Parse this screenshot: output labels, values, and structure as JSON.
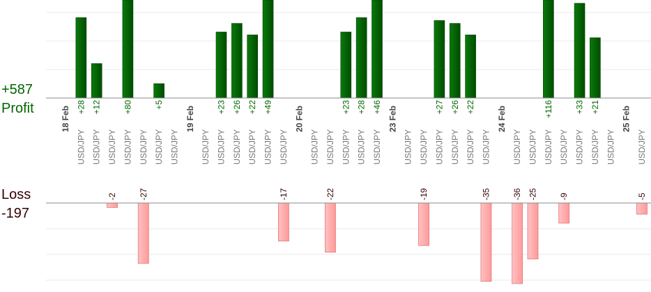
{
  "summary": {
    "profit_total": "+587",
    "profit_label": "Profit",
    "loss_label": "Loss",
    "loss_total": "-197"
  },
  "colors": {
    "profit_bar": "#006400",
    "loss_bar": "#ffaaaa",
    "profit_text": "#006600",
    "loss_text": "#330000",
    "axis": "#888888",
    "grid": "#e8e8e8",
    "label": "#777777"
  },
  "chart_data": {
    "type": "bar",
    "grid": true,
    "date_labels": [
      {
        "text": "18 Feb",
        "slot": 0
      },
      {
        "text": "19 Feb",
        "slot": 8
      },
      {
        "text": "20 Feb",
        "slot": 15
      },
      {
        "text": "23 Feb",
        "slot": 21
      },
      {
        "text": "24 Feb",
        "slot": 28
      },
      {
        "text": "25 Feb",
        "slot": 36
      }
    ],
    "slots": [
      {
        "pair": "",
        "profit": null,
        "loss": null
      },
      {
        "pair": "USD/JPY",
        "profit": 28,
        "loss": null
      },
      {
        "pair": "USD/JPY",
        "profit": 12,
        "loss": null
      },
      {
        "pair": "USD/JPY",
        "profit": null,
        "loss": -2
      },
      {
        "pair": "USD/JPY",
        "profit": 80,
        "loss": null
      },
      {
        "pair": "USD/JPY",
        "profit": null,
        "loss": -27
      },
      {
        "pair": "USD/JPY",
        "profit": 5,
        "loss": null
      },
      {
        "pair": "USD/JPY",
        "profit": null,
        "loss": null
      },
      {
        "pair": "",
        "profit": null,
        "loss": null
      },
      {
        "pair": "USD/JPY",
        "profit": null,
        "loss": null
      },
      {
        "pair": "USD/JPY",
        "profit": 23,
        "loss": null
      },
      {
        "pair": "USD/JPY",
        "profit": 26,
        "loss": null
      },
      {
        "pair": "USD/JPY",
        "profit": 22,
        "loss": null
      },
      {
        "pair": "USD/JPY",
        "profit": 49,
        "loss": null
      },
      {
        "pair": "USD/JPY",
        "profit": null,
        "loss": -17
      },
      {
        "pair": "",
        "profit": null,
        "loss": null
      },
      {
        "pair": "USD/JPY",
        "profit": null,
        "loss": null
      },
      {
        "pair": "USD/JPY",
        "profit": null,
        "loss": -22
      },
      {
        "pair": "USD/JPY",
        "profit": 23,
        "loss": null
      },
      {
        "pair": "USD/JPY",
        "profit": 28,
        "loss": null
      },
      {
        "pair": "USD/JPY",
        "profit": 46,
        "loss": null
      },
      {
        "pair": "",
        "profit": null,
        "loss": null
      },
      {
        "pair": "USD/JPY",
        "profit": null,
        "loss": null
      },
      {
        "pair": "USD/JPY",
        "profit": null,
        "loss": -19
      },
      {
        "pair": "USD/JPY",
        "profit": 27,
        "loss": null
      },
      {
        "pair": "USD/JPY",
        "profit": 26,
        "loss": null
      },
      {
        "pair": "USD/JPY",
        "profit": 22,
        "loss": null
      },
      {
        "pair": "USD/JPY",
        "profit": null,
        "loss": -35
      },
      {
        "pair": "",
        "profit": null,
        "loss": null
      },
      {
        "pair": "USD/JPY",
        "profit": null,
        "loss": -36
      },
      {
        "pair": "USD/JPY",
        "profit": null,
        "loss": -25
      },
      {
        "pair": "USD/JPY",
        "profit": 116,
        "loss": null
      },
      {
        "pair": "USD/JPY",
        "profit": null,
        "loss": -9
      },
      {
        "pair": "USD/JPY",
        "profit": 33,
        "loss": null
      },
      {
        "pair": "USD/JPY",
        "profit": 21,
        "loss": null
      },
      {
        "pair": "USD/JPY",
        "profit": null,
        "loss": null
      },
      {
        "pair": "",
        "profit": null,
        "loss": null
      },
      {
        "pair": "USD/JPY",
        "profit": null,
        "loss": -5
      }
    ]
  }
}
